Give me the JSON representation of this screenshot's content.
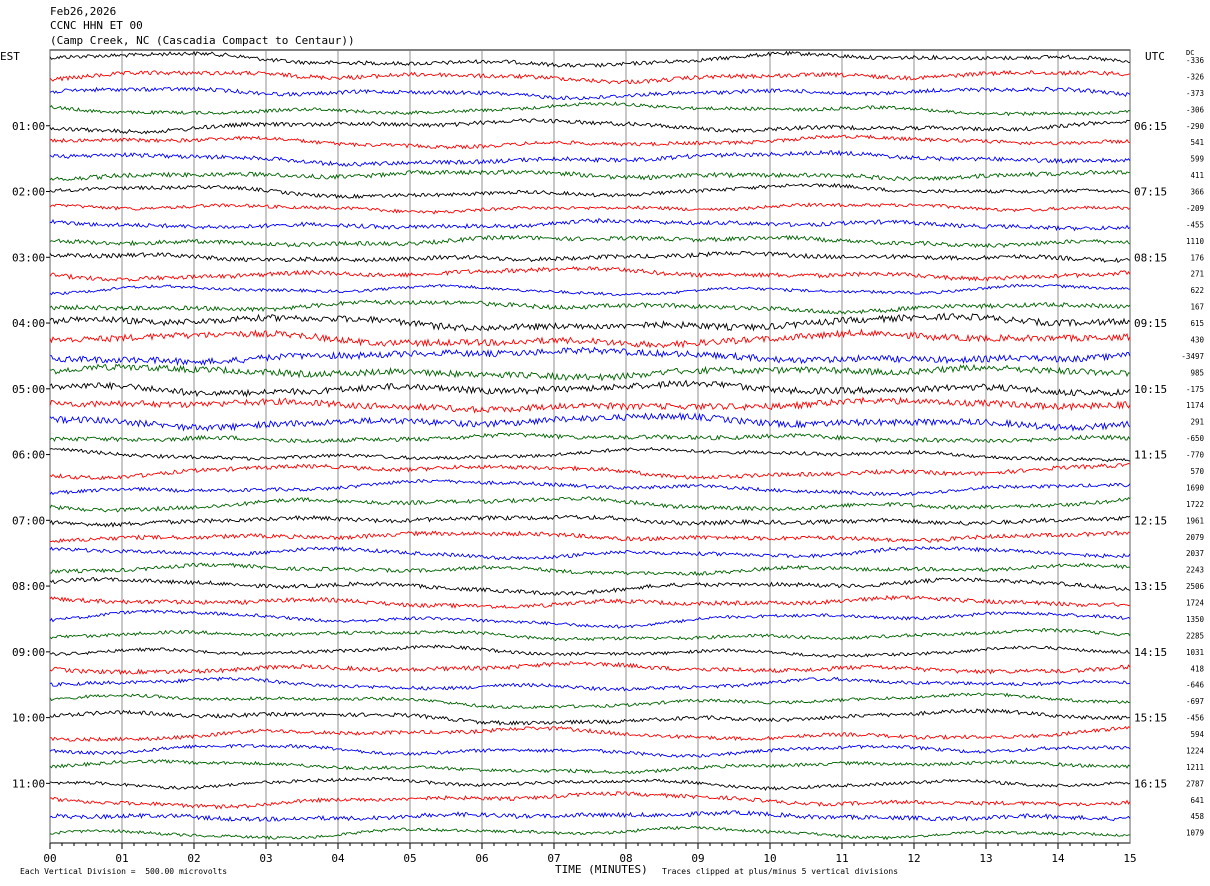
{
  "header": {
    "date": "Feb26,2026",
    "station": "CCNC HHN ET 00",
    "location": "(Camp Creek, NC (Cascadia Compact to Centaur))"
  },
  "left_timezone": "EST",
  "right_timezone": "UTC",
  "dc_label": "DC",
  "footer": {
    "scale_note": "Each Vertical Division =  500.00 microvolts",
    "clip_note": "Traces clipped at plus/minus 5 vertical divisions",
    "corner_mark": "\u0018"
  },
  "trace_colors": [
    "#000000",
    "#ff0000",
    "#0000ff",
    "#006400"
  ],
  "chart_data": {
    "type": "line",
    "title": "",
    "xlabel": "TIME (MINUTES)",
    "x_ticks": [
      "00",
      "01",
      "02",
      "03",
      "04",
      "05",
      "06",
      "07",
      "08",
      "09",
      "10",
      "11",
      "12",
      "13",
      "14",
      "15"
    ],
    "xlim": [
      0,
      15
    ],
    "grid": "vertical lines at each minute",
    "rows_per_hour": 4,
    "left_time_labels": [
      "01:00",
      "02:00",
      "03:00",
      "04:00",
      "05:00",
      "06:00",
      "07:00",
      "08:00",
      "09:00",
      "10:00",
      "11:00"
    ],
    "right_time_labels": [
      "06:15",
      "07:15",
      "08:15",
      "09:15",
      "10:15",
      "11:15",
      "12:15",
      "13:15",
      "14:15",
      "15:15",
      "16:15"
    ],
    "dc_offsets": [
      "-336",
      "-326",
      "-373",
      "-306",
      "-290",
      "541",
      "599",
      "411",
      "366",
      "-209",
      "-455",
      "1110",
      "176",
      "271",
      "622",
      "167",
      "615",
      "430",
      "-3497",
      "985",
      "-175",
      "1174",
      "291",
      "-650",
      "-770",
      "570",
      "1690",
      "1722",
      "1961",
      "2079",
      "2037",
      "2243",
      "2506",
      "1724",
      "1350",
      "2285",
      "1031",
      "418",
      "-646",
      "-697",
      "-456",
      "594",
      "1224",
      "1211",
      "2787",
      "641",
      "458",
      "1079"
    ]
  }
}
